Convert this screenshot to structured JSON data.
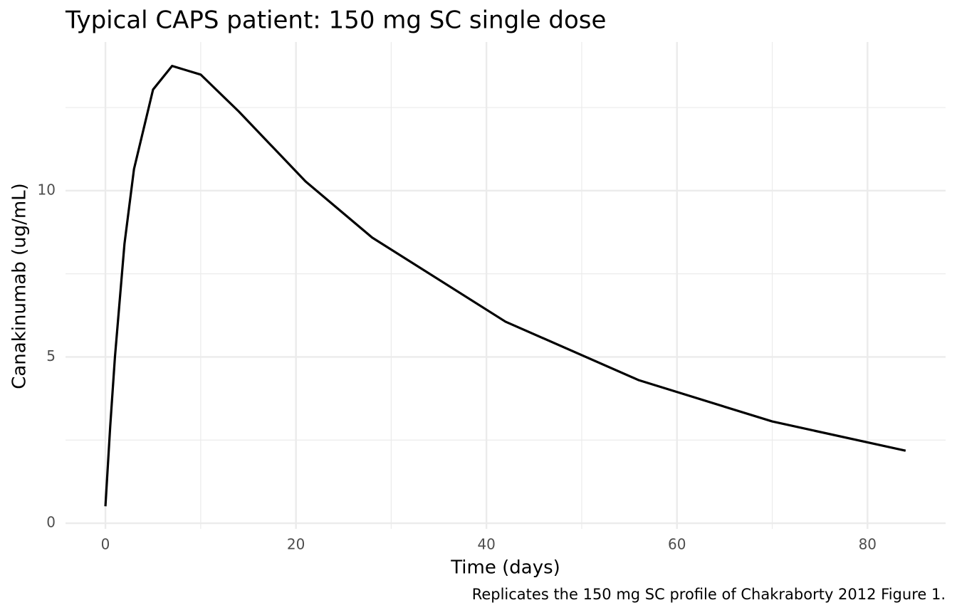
{
  "chart_data": {
    "type": "line",
    "title": "Typical CAPS patient: 150 mg SC single dose",
    "x_label": "Time (days)",
    "y_label": "Canakinumab (ug/mL)",
    "caption": "Replicates the 150 mg SC profile of Chakraborty 2012 Figure 1.",
    "x": [
      0,
      0.5,
      1,
      2,
      3,
      5,
      7,
      10,
      14,
      21,
      28,
      42,
      56,
      70,
      84
    ],
    "values": [
      0.51,
      2.9,
      5.0,
      8.4,
      10.65,
      13.04,
      13.75,
      13.49,
      12.38,
      10.28,
      8.59,
      6.06,
      4.3,
      3.06,
      2.18
    ],
    "color": "#000000",
    "xlim": [
      -4.19,
      88.2
    ],
    "ylim": [
      -0.17,
      14.47
    ],
    "xticks": [
      0,
      20,
      40,
      60,
      80
    ],
    "yticks": [
      0,
      5,
      10
    ],
    "x_minor_grid": [
      10,
      30,
      50,
      70
    ],
    "y_minor_grid": [
      2.5,
      7.5,
      12.5
    ],
    "grid": true
  }
}
